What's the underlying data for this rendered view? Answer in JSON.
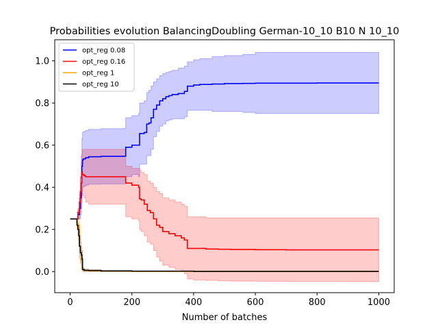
{
  "chart_data": {
    "type": "line",
    "title": "Probabilities evolution BalancingDoubling German-10_10 B10 N 10_10",
    "xlabel": "Number of batches",
    "ylabel": "",
    "xlim": [
      -50,
      1050
    ],
    "ylim": [
      -0.1,
      1.1
    ],
    "xticks": [
      0,
      200,
      400,
      600,
      800,
      1000
    ],
    "yticks": [
      0.0,
      0.2,
      0.4,
      0.6,
      0.8,
      1.0
    ],
    "grid": false,
    "legend_position": "top-left",
    "series": [
      {
        "name": "opt_reg 0.08",
        "color": "#0000ff",
        "band_color": "#0000ff",
        "x": [
          0,
          20,
          25,
          30,
          33,
          36,
          38,
          40,
          43,
          50,
          60,
          80,
          100,
          140,
          175,
          180,
          200,
          222,
          225,
          240,
          248,
          255,
          262,
          270,
          280,
          290,
          300,
          310,
          320,
          330,
          350,
          370,
          380,
          400,
          420,
          460,
          500,
          560,
          600,
          700,
          800,
          900,
          1000
        ],
        "values": [
          0.25,
          0.25,
          0.27,
          0.3,
          0.35,
          0.42,
          0.5,
          0.53,
          0.535,
          0.54,
          0.545,
          0.545,
          0.547,
          0.547,
          0.548,
          0.59,
          0.6,
          0.6,
          0.655,
          0.66,
          0.7,
          0.705,
          0.73,
          0.77,
          0.79,
          0.81,
          0.82,
          0.83,
          0.835,
          0.84,
          0.845,
          0.855,
          0.88,
          0.885,
          0.888,
          0.89,
          0.892,
          0.893,
          0.894,
          0.894,
          0.895,
          0.895,
          0.895
        ],
        "upper": [
          0.25,
          0.25,
          0.29,
          0.35,
          0.45,
          0.55,
          0.63,
          0.66,
          0.665,
          0.67,
          0.675,
          0.675,
          0.678,
          0.678,
          0.68,
          0.73,
          0.74,
          0.75,
          0.8,
          0.81,
          0.85,
          0.86,
          0.88,
          0.9,
          0.915,
          0.93,
          0.94,
          0.945,
          0.95,
          0.955,
          0.965,
          0.975,
          0.995,
          1.005,
          1.01,
          1.02,
          1.025,
          1.03,
          1.04,
          1.04,
          1.04,
          1.04,
          1.04
        ],
        "lower": [
          0.25,
          0.25,
          0.25,
          0.25,
          0.27,
          0.3,
          0.37,
          0.4,
          0.405,
          0.41,
          0.415,
          0.415,
          0.416,
          0.416,
          0.416,
          0.45,
          0.46,
          0.45,
          0.51,
          0.51,
          0.55,
          0.55,
          0.58,
          0.64,
          0.665,
          0.69,
          0.7,
          0.715,
          0.72,
          0.725,
          0.725,
          0.735,
          0.765,
          0.765,
          0.765,
          0.76,
          0.76,
          0.755,
          0.75,
          0.75,
          0.75,
          0.75,
          0.75
        ]
      },
      {
        "name": "opt_reg 0.16",
        "color": "#ff0000",
        "band_color": "#ff0000",
        "x": [
          0,
          20,
          25,
          30,
          33,
          36,
          38,
          40,
          45,
          50,
          60,
          100,
          140,
          175,
          180,
          200,
          222,
          225,
          230,
          240,
          250,
          260,
          270,
          280,
          290,
          300,
          320,
          340,
          360,
          370,
          380,
          400,
          440,
          480,
          520,
          600,
          700,
          800,
          900,
          1000
        ],
        "values": [
          0.25,
          0.25,
          0.28,
          0.33,
          0.38,
          0.42,
          0.47,
          0.46,
          0.455,
          0.45,
          0.45,
          0.45,
          0.45,
          0.45,
          0.42,
          0.41,
          0.4,
          0.345,
          0.34,
          0.32,
          0.29,
          0.28,
          0.25,
          0.22,
          0.21,
          0.19,
          0.18,
          0.17,
          0.16,
          0.15,
          0.11,
          0.11,
          0.107,
          0.106,
          0.105,
          0.104,
          0.103,
          0.103,
          0.103,
          0.103
        ],
        "upper": [
          0.25,
          0.25,
          0.3,
          0.37,
          0.45,
          0.52,
          0.56,
          0.58,
          0.58,
          0.58,
          0.58,
          0.58,
          0.58,
          0.58,
          0.5,
          0.49,
          0.49,
          0.48,
          0.47,
          0.46,
          0.43,
          0.42,
          0.4,
          0.38,
          0.37,
          0.35,
          0.34,
          0.33,
          0.32,
          0.31,
          0.26,
          0.26,
          0.255,
          0.255,
          0.255,
          0.255,
          0.255,
          0.255,
          0.255,
          0.255
        ],
        "lower": [
          0.25,
          0.25,
          0.25,
          0.28,
          0.3,
          0.33,
          0.37,
          0.36,
          0.35,
          0.33,
          0.32,
          0.32,
          0.32,
          0.32,
          0.26,
          0.25,
          0.24,
          0.2,
          0.19,
          0.17,
          0.14,
          0.13,
          0.1,
          0.07,
          0.05,
          0.03,
          0.02,
          0.01,
          0.0,
          -0.01,
          -0.035,
          -0.04,
          -0.042,
          -0.044,
          -0.045,
          -0.046,
          -0.047,
          -0.047,
          -0.048,
          -0.048
        ]
      },
      {
        "name": "opt_reg 1",
        "color": "#ffa500",
        "band_color": "#ffa500",
        "x": [
          0,
          18,
          22,
          25,
          28,
          30,
          33,
          36,
          40,
          45,
          60,
          100,
          200,
          400,
          600,
          800,
          1000
        ],
        "values": [
          0.25,
          0.25,
          0.23,
          0.2,
          0.22,
          0.12,
          0.1,
          0.05,
          0.008,
          0.006,
          0.004,
          0.002,
          0.001,
          0.001,
          0.001,
          0.001,
          0.001
        ],
        "upper": [
          0.25,
          0.25,
          0.25,
          0.23,
          0.25,
          0.2,
          0.16,
          0.1,
          0.02,
          0.012,
          0.008,
          0.004,
          0.002,
          0.002,
          0.002,
          0.002,
          0.002
        ],
        "lower": [
          0.25,
          0.25,
          0.2,
          0.15,
          0.18,
          0.06,
          0.04,
          0.01,
          0.0,
          0.0,
          0.0,
          0.0,
          0.0,
          0.0,
          0.0,
          0.0,
          0.0
        ]
      },
      {
        "name": "opt_reg 10",
        "color": "#000000",
        "band_color": "#808080",
        "x": [
          0,
          15,
          20,
          22,
          25,
          28,
          30,
          33,
          36,
          38,
          40,
          45,
          60,
          100,
          200,
          400,
          600,
          800,
          1000
        ],
        "values": [
          0.25,
          0.25,
          0.25,
          0.22,
          0.2,
          0.17,
          0.12,
          0.09,
          0.08,
          0.06,
          0.01,
          0.006,
          0.005,
          0.003,
          0.002,
          0.001,
          0.001,
          0.001,
          0.001
        ],
        "upper": [
          0.25,
          0.25,
          0.25,
          0.24,
          0.22,
          0.21,
          0.17,
          0.14,
          0.12,
          0.1,
          0.02,
          0.012,
          0.01,
          0.006,
          0.004,
          0.002,
          0.002,
          0.002,
          0.002
        ],
        "lower": [
          0.25,
          0.25,
          0.25,
          0.2,
          0.17,
          0.13,
          0.07,
          0.04,
          0.03,
          0.02,
          0.0,
          0.0,
          0.0,
          0.0,
          0.0,
          0.0,
          0.0,
          0.0,
          0.0
        ]
      }
    ]
  }
}
